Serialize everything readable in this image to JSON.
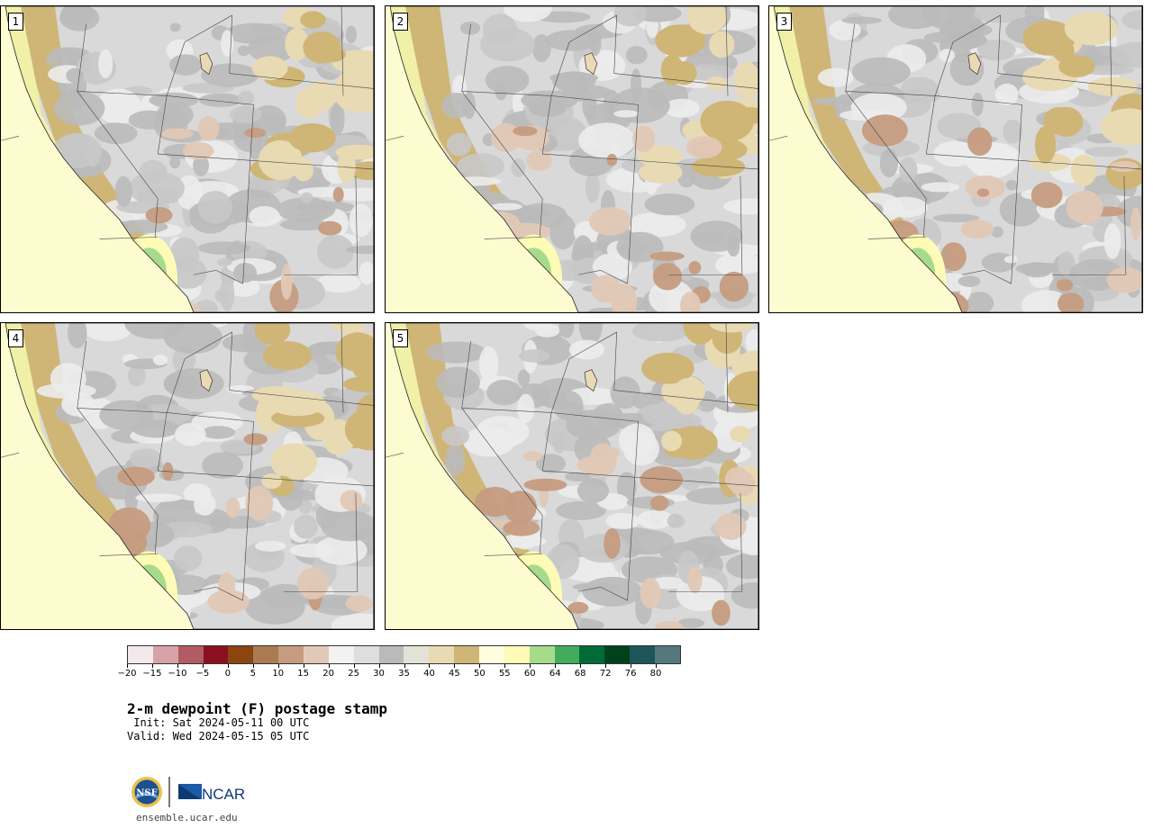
{
  "panels": [
    {
      "label": "1"
    },
    {
      "label": "2"
    },
    {
      "label": "3"
    },
    {
      "label": "4"
    },
    {
      "label": "5"
    }
  ],
  "colorbar": {
    "colors": [
      "#f4e9ea",
      "#d8a3a8",
      "#b05c62",
      "#8a0f1f",
      "#8a4510",
      "#aa7a52",
      "#c59c80",
      "#e2c8b6",
      "#f2f2f2",
      "#dedede",
      "#bababa",
      "#e2e2d6",
      "#e8dab2",
      "#cfb677",
      "#fefde0",
      "#fdfbb5",
      "#a6db8c",
      "#42ab5c",
      "#006b37",
      "#00421d",
      "#1e5559",
      "#54787c"
    ],
    "tick_labels": [
      "−20",
      "−15",
      "−10",
      "−5",
      "0",
      "5",
      "10",
      "15",
      "20",
      "25",
      "30",
      "35",
      "40",
      "45",
      "50",
      "55",
      "60",
      "64",
      "68",
      "72",
      "76",
      "80"
    ]
  },
  "title": "2-m dewpoint (F) postage stamp",
  "init_line": " Init: Sat 2024-05-11 00 UTC",
  "valid_line": "Valid: Wed 2024-05-15 05 UTC",
  "logos": {
    "nsf": "NSF",
    "ncar": "NCAR"
  },
  "url": "ensemble.ucar.edu"
}
